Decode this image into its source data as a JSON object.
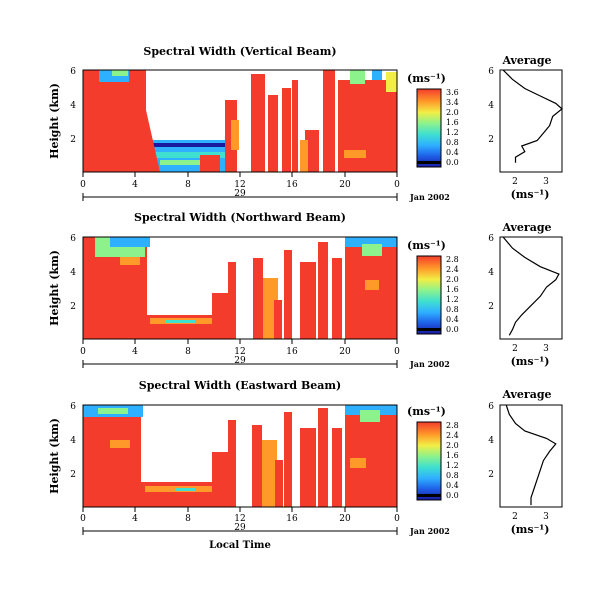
{
  "panels": [
    {
      "title": "Spectral Width (Vertical Beam)",
      "ylabel": "Height (km)",
      "yticks": [
        "6",
        "4",
        "2"
      ],
      "xticks": [
        "0",
        "4",
        "8",
        "12",
        "16",
        "20",
        "0"
      ],
      "day_label": "29",
      "date_label": "Jan 2002",
      "colorbar": {
        "unit": "(ms⁻¹)",
        "ticks": [
          "3.6",
          "3.4",
          "2.0",
          "1.6",
          "1.2",
          "0.8",
          "0.4",
          "0.0"
        ]
      },
      "average": {
        "title": "Average",
        "xticks": [
          "2",
          "3"
        ],
        "yticks": [
          "6",
          "4",
          "2"
        ],
        "unit": "(ms⁻¹)"
      }
    },
    {
      "title": "Spectral Width (Northward Beam)",
      "ylabel": "Height (km)",
      "yticks": [
        "6",
        "4",
        "2"
      ],
      "xticks": [
        "0",
        "4",
        "8",
        "12",
        "16",
        "20",
        "0"
      ],
      "day_label": "29",
      "date_label": "Jan 2002",
      "colorbar": {
        "unit": "(ms⁻¹)",
        "ticks": [
          "2.8",
          "2.4",
          "2.0",
          "1.6",
          "1.2",
          "0.8",
          "0.4",
          "0.0"
        ]
      },
      "average": {
        "title": "Average",
        "xticks": [
          "2",
          "3"
        ],
        "yticks": [
          "6",
          "4",
          "2"
        ],
        "unit": "(ms⁻¹)"
      }
    },
    {
      "title": "Spectral Width (Eastward Beam)",
      "ylabel": "Height (km)",
      "yticks": [
        "6",
        "4",
        "2"
      ],
      "xticks": [
        "0",
        "4",
        "8",
        "12",
        "16",
        "20",
        "0"
      ],
      "day_label": "29",
      "date_label": "Jan 2002",
      "xlabel": "Local Time",
      "colorbar": {
        "unit": "(ms⁻¹)",
        "ticks": [
          "2.8",
          "2.4",
          "2.0",
          "1.6",
          "1.2",
          "0.8",
          "0.4",
          "0.0"
        ]
      },
      "average": {
        "title": "Average",
        "xticks": [
          "2",
          "3"
        ],
        "yticks": [
          "6",
          "4",
          "2"
        ],
        "unit": "(ms⁻¹)"
      }
    }
  ],
  "chart_data": [
    {
      "type": "heatmap",
      "title": "Spectral Width (Vertical Beam)",
      "ylabel": "Height (km)",
      "x_range_local_time_h": [
        0,
        24
      ],
      "y_range_km": [
        0.5,
        6
      ],
      "color_range_ms": [
        0,
        3.6
      ],
      "colormap": [
        "#1a1aa0",
        "#1e5fe8",
        "#2fb0ff",
        "#3fe0d0",
        "#8cf28c",
        "#f2ee45",
        "#ff9a2a",
        "#f43c2c"
      ],
      "high_values_hours": [
        [
          0,
          5.2
        ],
        [
          10.7,
          11.6
        ],
        [
          13.5,
          14.4
        ],
        [
          16.7,
          17
        ],
        [
          19,
          20
        ],
        [
          20.2,
          24
        ]
      ],
      "average_profile": {
        "height_km": [
          6.0,
          5.5,
          5.0,
          4.6,
          4.2,
          3.9,
          3.5,
          3.0,
          2.6,
          2.2,
          1.9,
          1.6,
          1.3,
          1.0
        ],
        "width_ms": [
          1.6,
          1.9,
          2.3,
          2.8,
          3.3,
          3.5,
          3.2,
          3.1,
          2.9,
          2.7,
          2.2,
          2.3,
          2.0,
          2.0
        ],
        "xlim": [
          1.5,
          3.5
        ],
        "ylim": [
          0.5,
          6
        ]
      }
    },
    {
      "type": "heatmap",
      "title": "Spectral Width (Northward Beam)",
      "ylabel": "Height (km)",
      "x_range_local_time_h": [
        0,
        24
      ],
      "y_range_km": [
        0.5,
        6
      ],
      "color_range_ms": [
        0,
        2.8
      ],
      "colormap": [
        "#1a1aa0",
        "#1e5fe8",
        "#2fb0ff",
        "#3fe0d0",
        "#8cf28c",
        "#f2ee45",
        "#ff9a2a",
        "#f43c2c"
      ],
      "high_values_hours": [
        [
          0,
          5.2
        ],
        [
          10.5,
          11.7
        ],
        [
          13.3,
          14.5
        ],
        [
          15.5,
          16.8
        ],
        [
          17.5,
          18.5
        ],
        [
          19,
          24
        ]
      ],
      "average_profile": {
        "height_km": [
          6.0,
          5.4,
          4.9,
          4.4,
          4.0,
          3.7,
          3.3,
          2.8,
          2.3,
          1.8,
          1.4,
          1.0,
          0.7
        ],
        "width_ms": [
          1.6,
          1.9,
          2.3,
          2.8,
          3.4,
          3.3,
          3.0,
          2.8,
          2.5,
          2.2,
          2.0,
          1.9,
          1.8
        ],
        "xlim": [
          1.5,
          3.5
        ],
        "ylim": [
          0.5,
          6
        ]
      }
    },
    {
      "type": "heatmap",
      "title": "Spectral Width (Eastward Beam)",
      "ylabel": "Height (km)",
      "xlabel": "Local Time",
      "x_range_local_time_h": [
        0,
        24
      ],
      "y_range_km": [
        0.5,
        6
      ],
      "color_range_ms": [
        0,
        2.8
      ],
      "colormap": [
        "#1a1aa0",
        "#1e5fe8",
        "#2fb0ff",
        "#3fe0d0",
        "#8cf28c",
        "#f2ee45",
        "#ff9a2a",
        "#f43c2c"
      ],
      "high_values_hours": [
        [
          0,
          4.5
        ],
        [
          10.5,
          11.8
        ],
        [
          13.2,
          14.5
        ],
        [
          15.8,
          16.8
        ],
        [
          17.5,
          18.5
        ],
        [
          19,
          24
        ]
      ],
      "average_profile": {
        "height_km": [
          6.0,
          5.5,
          5.0,
          4.6,
          4.2,
          3.9,
          3.5,
          3.0,
          2.5,
          2.0,
          1.5,
          1.0,
          0.6
        ],
        "width_ms": [
          1.7,
          1.8,
          2.0,
          2.3,
          3.0,
          3.3,
          3.1,
          2.9,
          2.8,
          2.7,
          2.6,
          2.5,
          2.5
        ],
        "xlim": [
          1.5,
          3.5
        ],
        "ylim": [
          0.5,
          6
        ]
      }
    }
  ]
}
